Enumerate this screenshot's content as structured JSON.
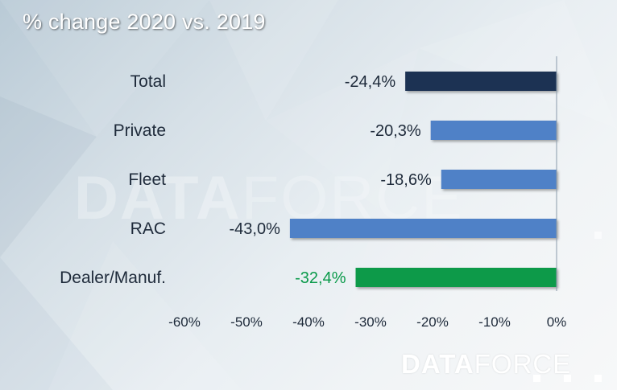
{
  "title": "% change 2020 vs. 2019",
  "watermark": {
    "bold_part": "DATA",
    "light_part": "FORCE"
  },
  "brand": {
    "bold_part": "DATA",
    "light_part": "FORCE"
  },
  "colors": {
    "total": "#1f3352",
    "segment": "#4f81c7",
    "dealer": "#0a9a4a",
    "dealer_label": "#0a9a4a",
    "text": "#1e2a3a"
  },
  "chart_data": {
    "type": "bar",
    "orientation": "horizontal",
    "categories": [
      "Total",
      "Private",
      "Fleet",
      "RAC",
      "Dealer/Manuf."
    ],
    "values": [
      -24.4,
      -20.3,
      -18.6,
      -43.0,
      -32.4
    ],
    "value_labels": [
      "-24,4%",
      "-20,3%",
      "-18,6%",
      "-43,0%",
      "-32,4%"
    ],
    "bar_colors": [
      "#1f3352",
      "#4f81c7",
      "#4f81c7",
      "#4f81c7",
      "#0a9a4a"
    ],
    "label_colors": [
      "#1e2a3a",
      "#1e2a3a",
      "#1e2a3a",
      "#1e2a3a",
      "#0a9a4a"
    ],
    "xlim": [
      -60,
      0
    ],
    "xticks": [
      -60,
      -50,
      -40,
      -30,
      -20,
      -10,
      0
    ],
    "xtick_labels": [
      "-60%",
      "-50%",
      "-40%",
      "-30%",
      "-20%",
      "-10%",
      "0%"
    ],
    "title": "% change 2020 vs. 2019",
    "xlabel": "",
    "ylabel": "",
    "grid": false,
    "legend": "none"
  }
}
